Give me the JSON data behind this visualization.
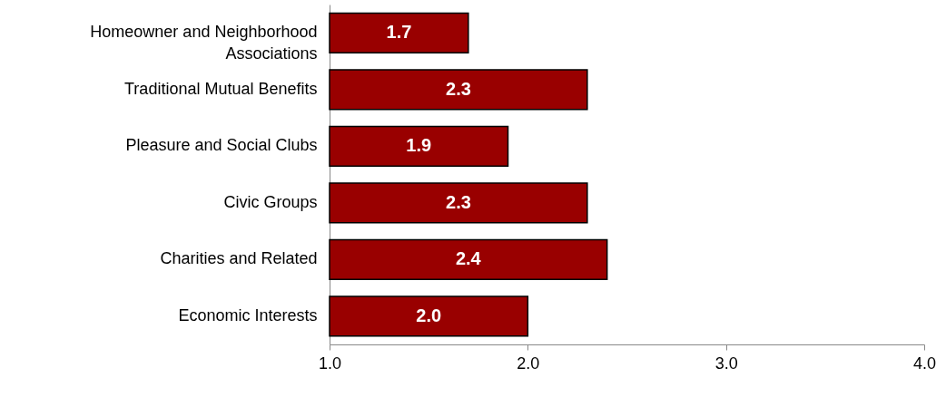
{
  "chart_data": {
    "type": "bar",
    "orientation": "horizontal",
    "categories": [
      "Homeowner and Neighborhood Associations",
      "Traditional Mutual Benefits",
      "Pleasure and Social Clubs",
      "Civic Groups",
      "Charities and Related",
      "Economic Interests"
    ],
    "values": [
      1.7,
      2.3,
      1.9,
      2.3,
      2.4,
      2.0
    ],
    "value_labels": [
      "1.7",
      "2.3",
      "1.9",
      "2.3",
      "2.4",
      "2.0"
    ],
    "color": "#990000",
    "xlim": [
      1,
      4
    ],
    "xticks": [
      {
        "value": 1,
        "label": "1.0"
      },
      {
        "value": 2,
        "label": "2.0"
      },
      {
        "value": 3,
        "label": "3.0"
      },
      {
        "value": 4,
        "label": "4.0"
      }
    ],
    "grid": false
  }
}
